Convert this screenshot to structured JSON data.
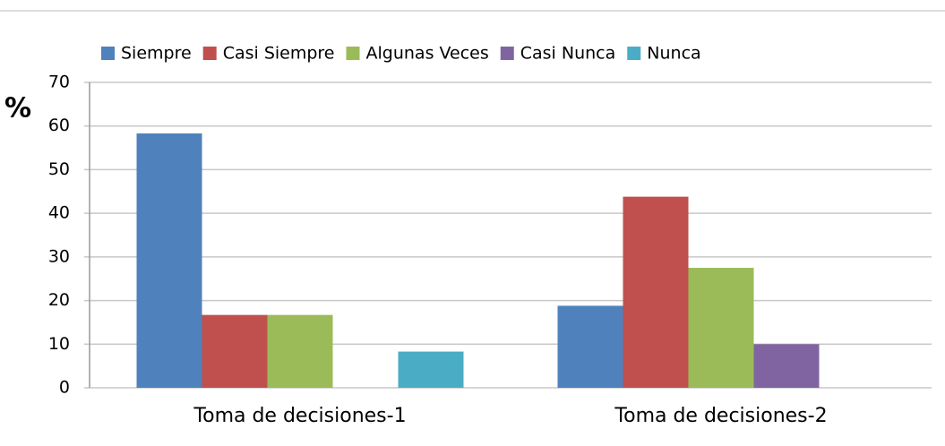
{
  "chart_data": {
    "type": "bar",
    "y_label": "%",
    "categories": [
      "Toma de decisiones-1",
      "Toma de decisiones-2"
    ],
    "series": [
      {
        "name": "Siempre",
        "color": "#4f81bd",
        "values": [
          58.3,
          18.8
        ]
      },
      {
        "name": "Casi Siempre",
        "color": "#c0504d",
        "values": [
          16.7,
          43.8
        ]
      },
      {
        "name": "Algunas Veces",
        "color": "#9bbb59",
        "values": [
          16.7,
          27.5
        ]
      },
      {
        "name": "Casi Nunca",
        "color": "#8064a2",
        "values": [
          0,
          10
        ]
      },
      {
        "name": "Nunca",
        "color": "#4bacc6",
        "values": [
          8.3,
          0
        ]
      }
    ],
    "ylim": [
      0,
      70
    ],
    "yticks": [
      0,
      10,
      20,
      30,
      40,
      50,
      60,
      70
    ],
    "grid": true,
    "legend": "top"
  }
}
